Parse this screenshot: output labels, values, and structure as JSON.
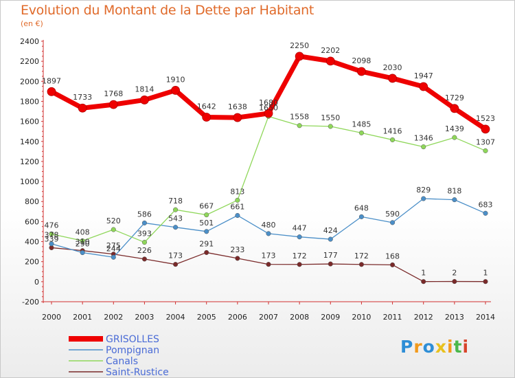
{
  "header": {
    "title": "Evolution du Montant de la Dette par Habitant",
    "subtitle": "(en €)"
  },
  "logo": {
    "letters": [
      "P",
      "r",
      "o",
      "x",
      "i",
      "t",
      "i"
    ],
    "colors": [
      "#2e8ed6",
      "#f29a1c",
      "#2e8ed6",
      "#e8c11e",
      "#f29a1c",
      "#4bb84b",
      "#d8442a"
    ]
  },
  "chart_data": {
    "type": "line",
    "title": "Evolution du Montant de la Dette par Habitant",
    "subtitle": "(en €)",
    "x": [
      "2000",
      "2001",
      "2002",
      "2003",
      "2004",
      "2005",
      "2006",
      "2007",
      "2008",
      "2009",
      "2010",
      "2011",
      "2012",
      "2013",
      "2014"
    ],
    "yticks": [
      "-200",
      "0",
      "200",
      "400",
      "600",
      "800",
      "1000",
      "1200",
      "1400",
      "1600",
      "1800",
      "2000",
      "2200",
      "2400"
    ],
    "ylim": [
      -200,
      2400
    ],
    "legend_position": "bottom-left",
    "series": [
      {
        "name": "GRISOLLES",
        "color": "#ee0000",
        "values": [
          1897,
          1733,
          1768,
          1814,
          1910,
          1642,
          1638,
          1680,
          2250,
          2202,
          2098,
          2030,
          1947,
          1729,
          1523
        ],
        "labels": [
          "1897",
          "1733",
          "1768",
          "1814",
          "1910",
          "1642",
          "1638",
          "1680",
          "2250",
          "2202",
          "2098",
          "2030",
          "1947",
          "1729",
          "1523"
        ]
      },
      {
        "name": "Pompignan",
        "color": "#4b8fc8",
        "values": [
          378,
          290,
          244,
          586,
          543,
          501,
          661,
          480,
          447,
          424,
          648,
          590,
          829,
          818,
          683
        ],
        "labels": [
          "378",
          "290",
          "244",
          "586",
          "543",
          "501",
          "661",
          "480",
          "447",
          "424",
          "648",
          "590",
          "829",
          "818",
          "683"
        ]
      },
      {
        "name": "Canals",
        "color": "#8fd75a",
        "values": [
          476,
          408,
          520,
          393,
          718,
          667,
          813,
          1650,
          1558,
          1550,
          1485,
          1416,
          1346,
          1439,
          1307
        ],
        "labels": [
          "476",
          "408",
          "520",
          "393",
          "718",
          "667",
          "813",
          "1650",
          "1558",
          "1550",
          "1485",
          "1416",
          "1346",
          "1439",
          "1307"
        ]
      },
      {
        "name": "Saint-Rustice",
        "color": "#7a2a2a",
        "values": [
          339,
          310,
          275,
          226,
          173,
          291,
          233,
          173,
          172,
          177,
          172,
          168,
          1,
          2,
          1
        ],
        "labels": [
          "339",
          "310",
          "275",
          "226",
          "173",
          "291",
          "233",
          "173",
          "172",
          "177",
          "172",
          "168",
          "1",
          "2",
          "1"
        ]
      }
    ]
  }
}
